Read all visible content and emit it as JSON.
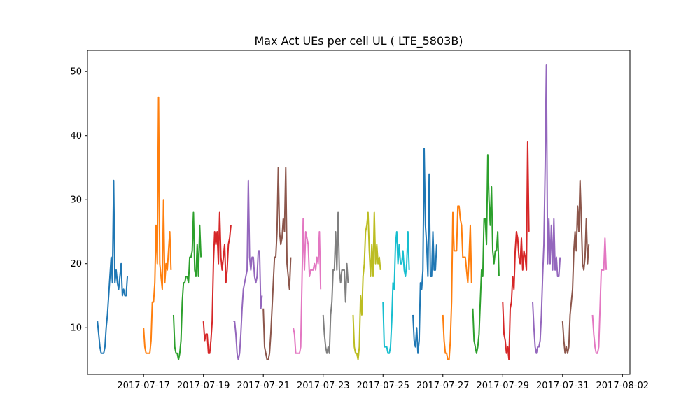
{
  "chart_data": {
    "type": "line",
    "title": "Max Act UEs per cell UL ( LTE_5803B)",
    "xlabel": "",
    "ylabel": "",
    "xlim": [
      "2016-07-15T03:00",
      "2016-08-02T06:00"
    ],
    "ylim": [
      2.7,
      53.3
    ],
    "y_ticks": [
      10,
      20,
      30,
      40,
      50
    ],
    "x_ticks": [
      "2017-07-17",
      "2017-07-19",
      "2017-07-21",
      "2017-07-23",
      "2017-07-25",
      "2017-07-27",
      "2017-07-29",
      "2017-07-31",
      "2017-08-02"
    ],
    "grid": false,
    "legend": "none",
    "colors": [
      "#1f77b4",
      "#ff7f0e",
      "#2ca02c",
      "#d62728",
      "#9467bd",
      "#8c564b",
      "#e377c2",
      "#7f7f7f",
      "#bcbd22",
      "#17becf"
    ],
    "series": [
      {
        "start": "2017-07-15T11:00",
        "values": [
          11,
          9,
          7,
          6,
          6,
          6,
          7,
          10,
          12,
          15,
          18,
          21,
          17,
          33,
          17,
          19,
          17,
          16,
          18,
          20,
          15,
          16,
          15,
          15,
          18
        ]
      },
      {
        "start": "2017-07-17T00:00",
        "values": [
          10,
          7,
          6,
          6,
          6,
          6,
          8,
          14,
          14,
          17,
          26,
          20,
          46,
          20,
          18,
          16,
          30,
          17,
          20,
          19,
          22,
          25,
          19
        ]
      },
      {
        "start": "2017-07-18T00:00",
        "values": [
          12,
          7,
          6,
          6,
          5,
          6,
          8,
          14,
          17,
          17,
          18,
          18,
          17,
          21,
          21,
          22,
          28,
          19,
          18,
          23,
          18,
          26,
          21
        ]
      },
      {
        "start": "2017-07-19T00:00",
        "values": [
          11,
          8,
          9,
          9,
          6,
          6,
          8,
          11,
          20,
          25,
          23,
          25,
          20,
          28,
          21,
          19,
          21,
          23,
          17,
          19,
          23,
          24,
          26
        ]
      },
      {
        "start": "2017-07-20T00:00",
        "values": [
          11,
          11,
          9,
          6,
          5,
          6,
          9,
          13,
          16,
          17,
          18,
          19,
          33,
          21,
          19,
          21,
          21,
          18,
          17,
          18,
          22,
          22,
          13,
          15
        ]
      },
      {
        "start": "2017-07-21T00:00",
        "values": [
          13,
          7,
          6,
          5,
          5,
          6,
          9,
          13,
          17,
          21,
          21,
          25,
          35,
          25,
          23,
          24,
          27,
          25,
          35,
          20,
          18,
          16,
          21
        ]
      },
      {
        "start": "2017-07-22T00:00",
        "values": [
          10,
          9,
          6,
          6,
          6,
          6,
          7,
          17,
          27,
          19,
          25,
          24,
          23,
          18,
          19,
          19,
          19,
          20,
          19,
          21,
          20,
          25,
          16
        ]
      },
      {
        "start": "2017-07-23T00:00",
        "values": [
          12,
          9,
          7,
          6,
          7,
          6,
          12,
          14,
          19,
          19,
          25,
          19,
          28,
          19,
          17,
          19,
          19,
          19,
          14,
          20,
          17
        ]
      },
      {
        "start": "2017-07-24T00:00",
        "values": [
          12,
          7,
          6,
          6,
          5,
          7,
          15,
          12,
          18,
          20,
          25,
          26,
          28,
          22,
          18,
          23,
          18,
          28,
          20,
          23,
          20,
          21,
          19
        ]
      },
      {
        "start": "2017-07-25T00:00",
        "values": [
          14,
          7,
          7,
          7,
          6,
          6,
          7,
          11,
          17,
          16,
          23,
          25,
          20,
          23,
          20,
          20,
          22,
          19,
          18,
          20,
          25,
          19
        ]
      },
      {
        "start": "2017-07-26T00:00",
        "values": [
          12,
          8,
          7,
          10,
          6,
          8,
          17,
          16,
          19,
          38,
          26,
          23,
          18,
          34,
          18,
          18,
          25,
          19,
          19,
          23
        ]
      },
      {
        "start": "2017-07-27T00:00",
        "values": [
          12,
          8,
          6,
          6,
          5,
          5,
          8,
          14,
          28,
          22,
          22,
          22,
          29,
          29,
          27,
          26,
          21,
          21,
          21,
          19,
          17,
          21,
          26,
          17
        ]
      },
      {
        "start": "2017-07-28T00:00",
        "values": [
          13,
          8,
          7,
          6,
          7,
          9,
          14,
          19,
          18,
          27,
          27,
          23,
          37,
          30,
          26,
          32,
          22,
          20,
          22,
          22,
          25,
          18
        ]
      },
      {
        "start": "2017-07-29T00:00",
        "values": [
          14,
          9,
          8,
          6,
          7,
          5,
          13,
          14,
          18,
          16,
          22,
          25,
          24,
          21,
          20,
          24,
          19,
          22,
          21,
          19,
          39,
          25
        ]
      },
      {
        "start": "2017-07-30T00:00",
        "values": [
          14,
          10,
          7,
          6,
          7,
          7,
          8,
          12,
          18,
          23,
          35,
          51,
          20,
          27,
          20,
          26,
          19,
          27,
          19,
          21,
          18,
          18,
          21
        ]
      },
      {
        "start": "2017-07-31T00:00",
        "values": [
          11,
          8,
          6,
          7,
          6,
          7,
          12,
          14,
          16,
          22,
          25,
          22,
          29,
          25,
          33,
          27,
          20,
          19,
          21,
          27,
          20,
          23
        ]
      },
      {
        "start": "2017-08-01T00:00",
        "values": [
          12,
          9,
          7,
          6,
          6,
          7,
          13,
          19,
          19,
          19,
          24,
          19
        ]
      }
    ]
  }
}
